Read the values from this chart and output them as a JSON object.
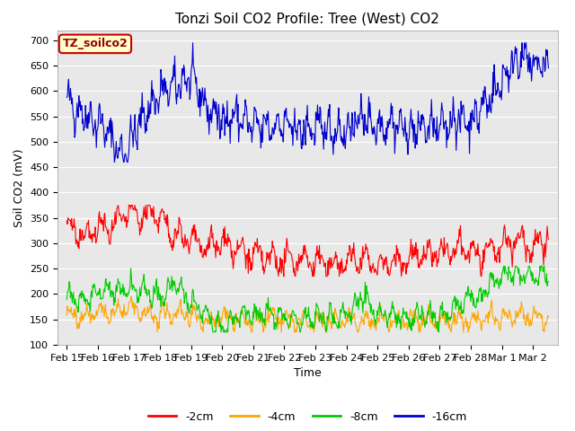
{
  "title": "Tonzi Soil CO2 Profile: Tree (West) CO2",
  "ylabel": "Soil CO2 (mV)",
  "xlabel": "Time",
  "ylim": [
    100,
    720
  ],
  "background_color": "#e8e8e8",
  "fig_background": "#ffffff",
  "series": [
    {
      "label": "-2cm",
      "color": "#ff0000"
    },
    {
      "label": "-4cm",
      "color": "#ffa500"
    },
    {
      "label": "-8cm",
      "color": "#00cc00"
    },
    {
      "label": "-16cm",
      "color": "#0000cc"
    }
  ],
  "xtick_labels": [
    "Feb 15",
    "Feb 16",
    "Feb 17",
    "Feb 18",
    "Feb 19",
    "Feb 20",
    "Feb 21",
    "Feb 22",
    "Feb 23",
    "Feb 24",
    "Feb 25",
    "Feb 26",
    "Feb 27",
    "Feb 28",
    "Mar 1",
    "Mar 2"
  ],
  "legend_box_label": "TZ_soilco2",
  "legend_box_bg": "#ffffcc",
  "legend_box_edge": "#cc0000",
  "legend_box_text": "#990000",
  "title_fontsize": 11,
  "axis_fontsize": 9,
  "tick_fontsize": 8
}
